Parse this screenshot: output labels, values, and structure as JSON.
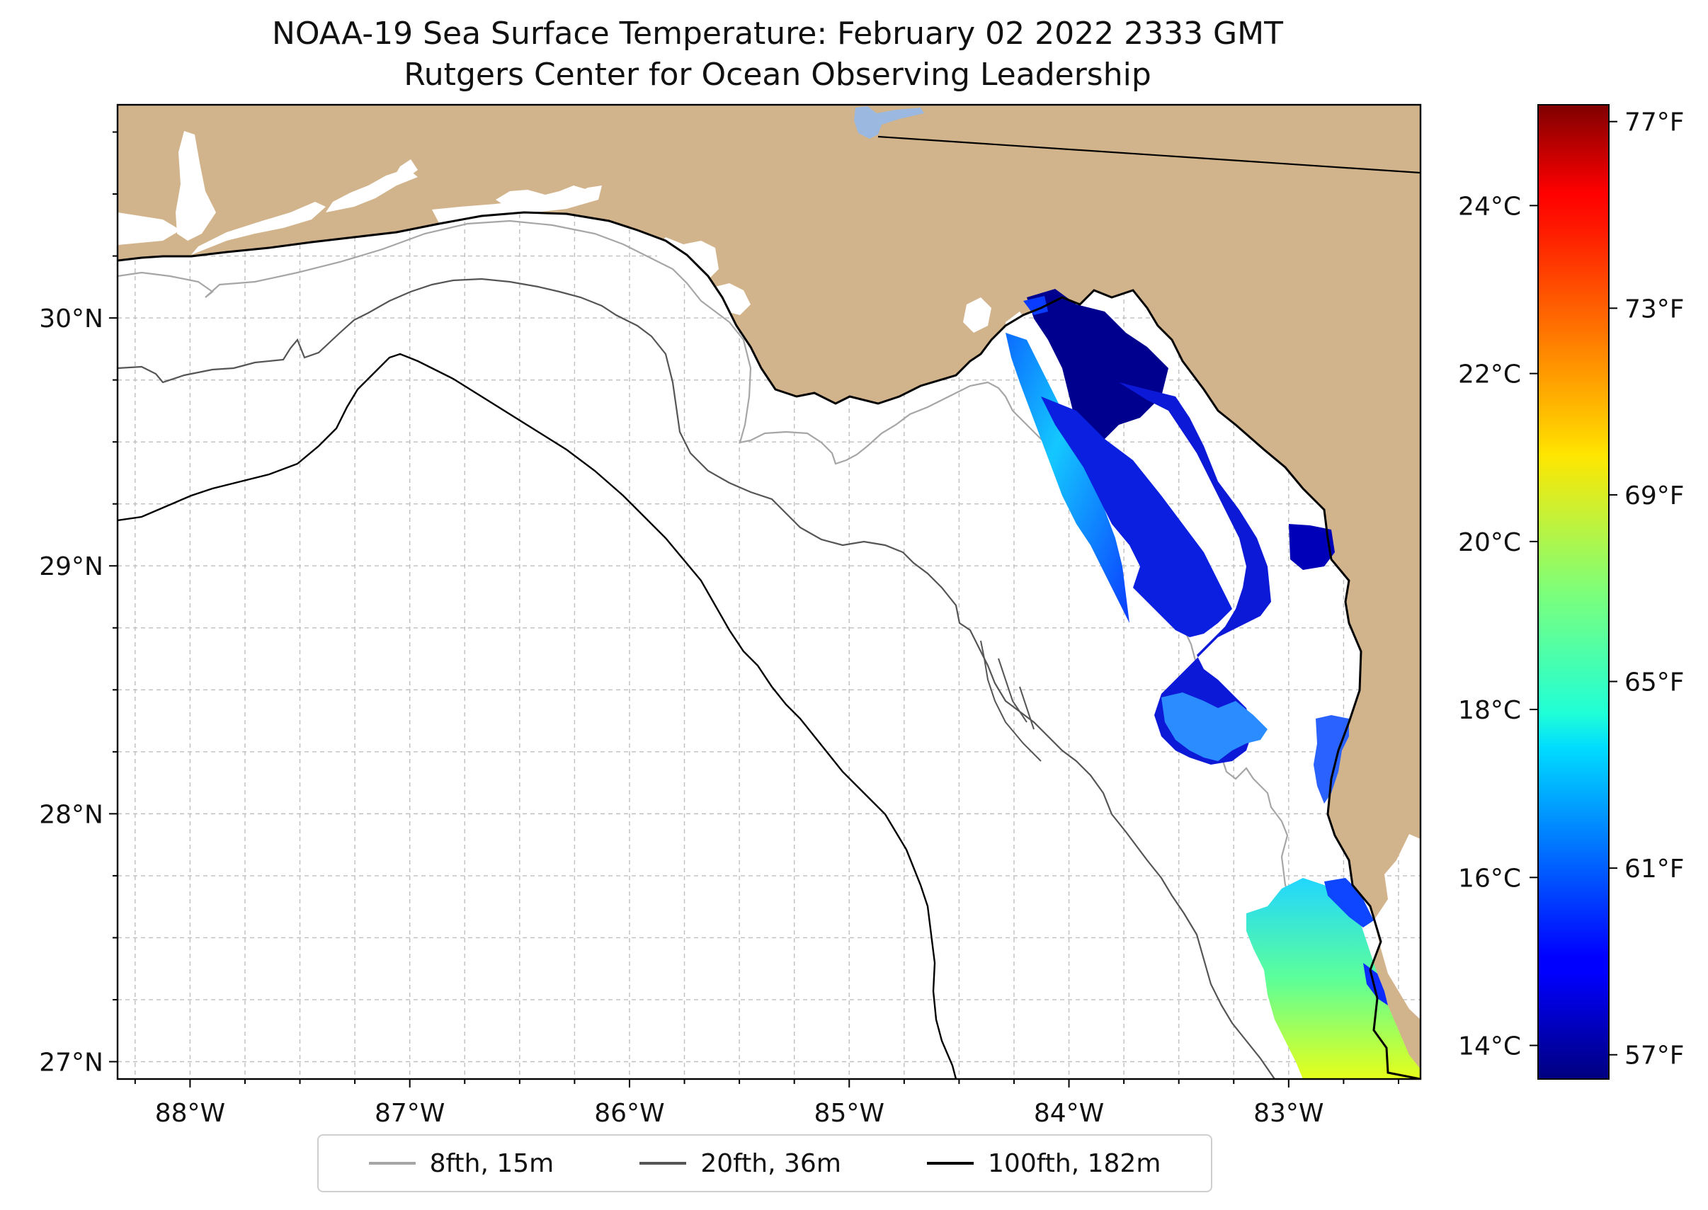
{
  "title": "NOAA-19 Sea Surface Temperature: February 02 2022 2333 GMT",
  "subtitle": "Rutgers Center for Ocean Observing Leadership",
  "map": {
    "lon_range": [
      -88.33,
      -82.4
    ],
    "lat_range": [
      26.93,
      30.86
    ],
    "lon_ticks": [
      {
        "value": -88,
        "label": "88°W"
      },
      {
        "value": -87,
        "label": "87°W"
      },
      {
        "value": -86,
        "label": "86°W"
      },
      {
        "value": -85,
        "label": "85°W"
      },
      {
        "value": -84,
        "label": "84°W"
      },
      {
        "value": -83,
        "label": "83°W"
      }
    ],
    "lat_ticks": [
      {
        "value": 27,
        "label": "27°N"
      },
      {
        "value": 28,
        "label": "28°N"
      },
      {
        "value": 29,
        "label": "29°N"
      },
      {
        "value": 30,
        "label": "30°N"
      }
    ],
    "gridlines": true,
    "land_color": "#d2b48c",
    "water_color": "#ffffff",
    "lake_color": "#9ab8e0"
  },
  "colorbar": {
    "colormap": "jet",
    "celsius_range": [
      13.6,
      25.2
    ],
    "celsius_ticks": [
      {
        "value": 14,
        "label": "14°C"
      },
      {
        "value": 16,
        "label": "16°C"
      },
      {
        "value": 18,
        "label": "18°C"
      },
      {
        "value": 20,
        "label": "20°C"
      },
      {
        "value": 22,
        "label": "22°C"
      },
      {
        "value": 24,
        "label": "24°C"
      }
    ],
    "fahrenheit_ticks": [
      {
        "value": 57,
        "label": "57°F"
      },
      {
        "value": 61,
        "label": "61°F"
      },
      {
        "value": 65,
        "label": "65°F"
      },
      {
        "value": 69,
        "label": "69°F"
      },
      {
        "value": 73,
        "label": "73°F"
      },
      {
        "value": 77,
        "label": "77°F"
      }
    ]
  },
  "legend": {
    "placement": "bottom-center",
    "items": [
      {
        "label": "8fth, 15m",
        "color": "#a6a6a6"
      },
      {
        "label": "20fth, 36m",
        "color": "#555555"
      },
      {
        "label": "100fth, 182m",
        "color": "#000000"
      }
    ]
  }
}
